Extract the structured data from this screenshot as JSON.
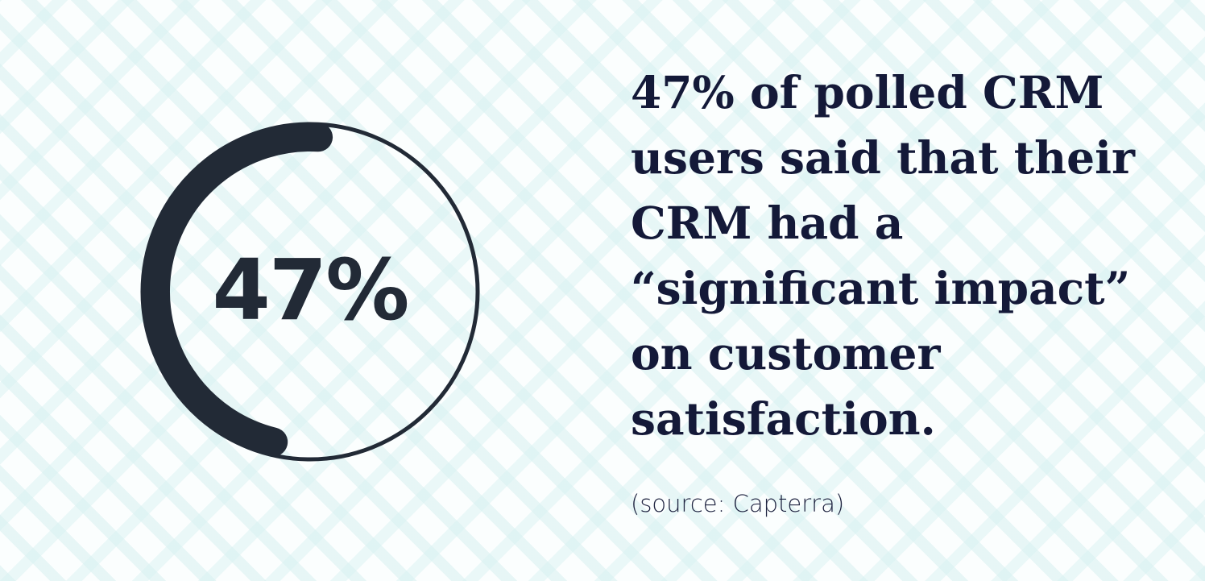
{
  "stat": {
    "value_label": "47%",
    "percent": 47,
    "ring_color": "#222a36"
  },
  "headline": {
    "lines": [
      "47% of polled CRM",
      "users said that their",
      "CRM had a",
      "“significant impact”",
      "on customer",
      "satisfaction."
    ],
    "color": "#141938"
  },
  "source": "(source: Capterra)",
  "background": {
    "pattern_color": "#d6f0f0"
  }
}
